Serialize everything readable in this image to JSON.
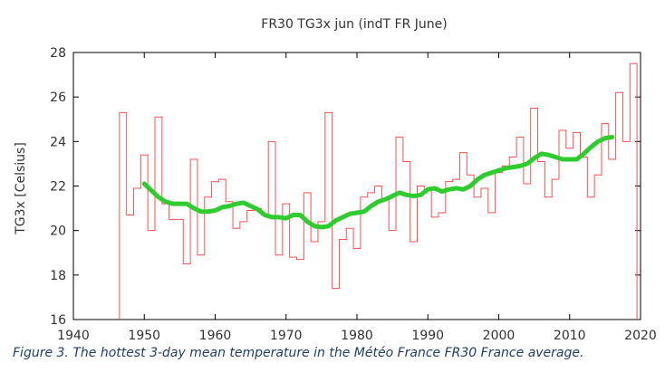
{
  "chart_data": {
    "type": "line",
    "title": "FR30 TG3x jun (indT FR June)",
    "xlabel": "",
    "ylabel": "TG3x [Celsius]",
    "xlim": [
      1940,
      2020
    ],
    "ylim": [
      16,
      28
    ],
    "xticks": [
      1940,
      1950,
      1960,
      1970,
      1980,
      1990,
      2000,
      2010,
      2020
    ],
    "yticks": [
      16,
      18,
      20,
      22,
      24,
      26,
      28
    ],
    "grid": false,
    "legend": "none",
    "series": [
      {
        "style": "steps",
        "color": "#ff5050",
        "x": [
          1947,
          1948,
          1949,
          1950,
          1951,
          1952,
          1953,
          1954,
          1955,
          1956,
          1957,
          1958,
          1959,
          1960,
          1961,
          1962,
          1963,
          1964,
          1965,
          1966,
          1967,
          1968,
          1969,
          1970,
          1971,
          1972,
          1973,
          1974,
          1975,
          1976,
          1977,
          1978,
          1979,
          1980,
          1981,
          1982,
          1983,
          1984,
          1985,
          1986,
          1987,
          1988,
          1989,
          1990,
          1991,
          1992,
          1993,
          1994,
          1995,
          1996,
          1997,
          1998,
          1999,
          2000,
          2001,
          2002,
          2003,
          2004,
          2005,
          2006,
          2007,
          2008,
          2009,
          2010,
          2011,
          2012,
          2013,
          2014,
          2015,
          2016,
          2017,
          2018,
          2019
        ],
        "y": [
          25.3,
          20.7,
          21.9,
          23.4,
          20.0,
          25.1,
          21.2,
          20.5,
          20.5,
          18.5,
          23.2,
          18.9,
          21.5,
          22.2,
          22.3,
          21.3,
          20.1,
          20.4,
          20.9,
          21.0,
          20.7,
          24.0,
          18.9,
          21.2,
          18.8,
          18.7,
          21.7,
          19.5,
          20.4,
          25.3,
          17.4,
          19.6,
          20.1,
          19.2,
          21.5,
          21.7,
          22.0,
          21.4,
          20.0,
          24.2,
          23.1,
          19.5,
          22.0,
          21.8,
          20.6,
          20.8,
          22.2,
          22.3,
          23.5,
          22.5,
          21.5,
          21.9,
          20.8,
          22.6,
          22.9,
          23.3,
          24.2,
          22.1,
          25.5,
          23.1,
          21.5,
          22.3,
          24.5,
          23.7,
          24.4,
          23.3,
          21.5,
          22.5,
          24.8,
          23.2,
          26.2,
          24.0,
          27.5
        ]
      },
      {
        "style": "smooth",
        "color": "#2ecc2e",
        "x": [
          1950,
          1951,
          1952,
          1953,
          1954,
          1955,
          1956,
          1957,
          1958,
          1959,
          1960,
          1961,
          1962,
          1963,
          1964,
          1965,
          1966,
          1967,
          1968,
          1969,
          1970,
          1971,
          1972,
          1973,
          1974,
          1975,
          1976,
          1977,
          1978,
          1979,
          1980,
          1981,
          1982,
          1983,
          1984,
          1985,
          1986,
          1987,
          1988,
          1989,
          1990,
          1991,
          1992,
          1993,
          1994,
          1995,
          1996,
          1997,
          1998,
          1999,
          2000,
          2001,
          2002,
          2003,
          2004,
          2005,
          2006,
          2007,
          2008,
          2009,
          2010,
          2011,
          2012,
          2013,
          2014,
          2015,
          2016
        ],
        "y": [
          22.1,
          21.8,
          21.5,
          21.3,
          21.2,
          21.2,
          21.2,
          21.0,
          20.85,
          20.85,
          20.9,
          21.05,
          21.1,
          21.2,
          21.25,
          21.1,
          20.95,
          20.7,
          20.6,
          20.6,
          20.55,
          20.7,
          20.7,
          20.4,
          20.2,
          20.15,
          20.2,
          20.45,
          20.6,
          20.75,
          20.8,
          20.85,
          21.1,
          21.3,
          21.4,
          21.55,
          21.7,
          21.6,
          21.55,
          21.6,
          21.85,
          21.9,
          21.75,
          21.85,
          21.9,
          21.85,
          22.0,
          22.3,
          22.5,
          22.6,
          22.7,
          22.8,
          22.85,
          22.9,
          23.0,
          23.25,
          23.45,
          23.4,
          23.3,
          23.2,
          23.2,
          23.2,
          23.45,
          23.75,
          24.0,
          24.15,
          24.2
        ]
      }
    ]
  },
  "caption": "Figure 3. The hottest 3-day mean temperature in the Météo France FR30 France average."
}
